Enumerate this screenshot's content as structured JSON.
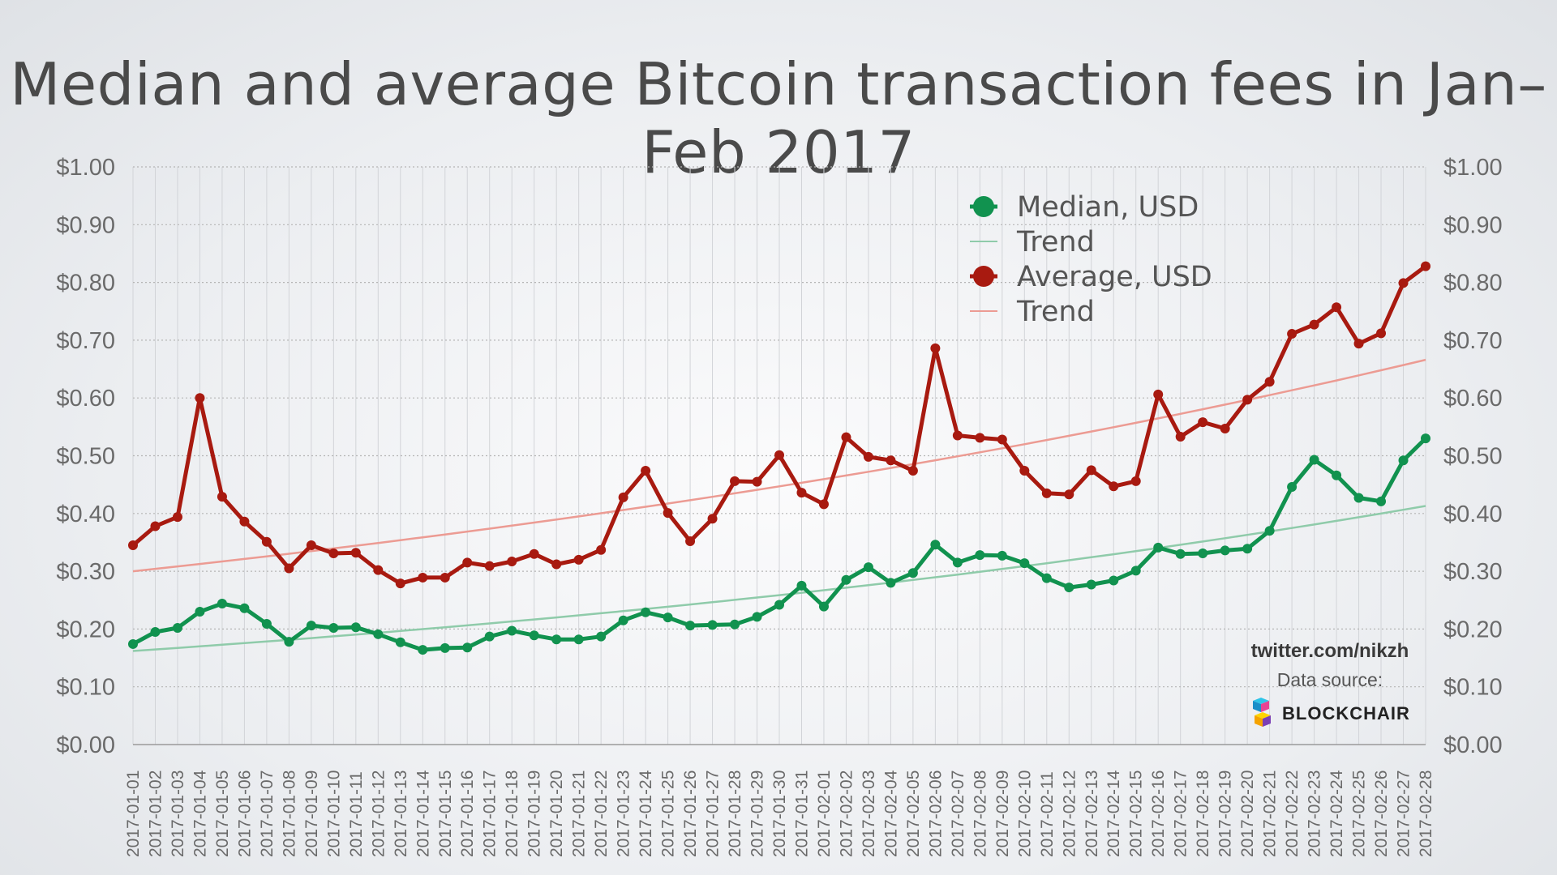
{
  "title": "Median and average Bitcoin transaction fees in Jan–Feb 2017",
  "credit": {
    "twitter": "twitter.com/nikzh",
    "source_label": "Data source:",
    "logo_text": "BLOCKCHAIR"
  },
  "colors": {
    "median": "#11924f",
    "median_trend": "#8fcbaa",
    "average": "#a81a10",
    "average_trend": "#ec9b93",
    "grid": "#b5b5b5",
    "axis_text": "#6a6a6a"
  },
  "chart_data": {
    "type": "line",
    "title": "Median and average Bitcoin transaction fees in Jan–Feb 2017",
    "xlabel": "",
    "ylabel": "",
    "ylim": [
      0,
      1.0
    ],
    "y_ticks": [
      "$0.00",
      "$0.10",
      "$0.20",
      "$0.30",
      "$0.40",
      "$0.50",
      "$0.60",
      "$0.70",
      "$0.80",
      "$0.90",
      "$1.00"
    ],
    "categories": [
      "2017-01-01",
      "2017-01-02",
      "2017-01-03",
      "2017-01-04",
      "2017-01-05",
      "2017-01-06",
      "2017-01-07",
      "2017-01-08",
      "2017-01-09",
      "2017-01-10",
      "2017-01-11",
      "2017-01-12",
      "2017-01-13",
      "2017-01-14",
      "2017-01-15",
      "2017-01-16",
      "2017-01-17",
      "2017-01-18",
      "2017-01-19",
      "2017-01-20",
      "2017-01-21",
      "2017-01-22",
      "2017-01-23",
      "2017-01-24",
      "2017-01-25",
      "2017-01-26",
      "2017-01-27",
      "2017-01-28",
      "2017-01-29",
      "2017-01-30",
      "2017-01-31",
      "2017-02-01",
      "2017-02-02",
      "2017-02-03",
      "2017-02-04",
      "2017-02-05",
      "2017-02-06",
      "2017-02-07",
      "2017-02-08",
      "2017-02-09",
      "2017-02-10",
      "2017-02-11",
      "2017-02-12",
      "2017-02-13",
      "2017-02-14",
      "2017-02-15",
      "2017-02-16",
      "2017-02-17",
      "2017-02-18",
      "2017-02-19",
      "2017-02-20",
      "2017-02-21",
      "2017-02-22",
      "2017-02-23",
      "2017-02-24",
      "2017-02-25",
      "2017-02-26",
      "2017-02-27",
      "2017-02-28"
    ],
    "legend": [
      "Median, USD",
      "Trend",
      "Average, USD",
      "Trend"
    ],
    "legend_position": "top-right",
    "series": [
      {
        "name": "Median, USD",
        "values": [
          0.174,
          0.195,
          0.202,
          0.23,
          0.244,
          0.236,
          0.209,
          0.178,
          0.206,
          0.202,
          0.203,
          0.191,
          0.177,
          0.164,
          0.167,
          0.168,
          0.187,
          0.197,
          0.189,
          0.182,
          0.182,
          0.187,
          0.215,
          0.229,
          0.22,
          0.206,
          0.207,
          0.208,
          0.221,
          0.242,
          0.275,
          0.239,
          0.285,
          0.307,
          0.28,
          0.297,
          0.346,
          0.315,
          0.328,
          0.327,
          0.314,
          0.288,
          0.272,
          0.277,
          0.284,
          0.301,
          0.341,
          0.33,
          0.331,
          0.336,
          0.339,
          0.37,
          0.446,
          0.493,
          0.466,
          0.427,
          0.421,
          0.492,
          0.53
        ]
      },
      {
        "name": "Average, USD",
        "values": [
          0.345,
          0.378,
          0.394,
          0.6,
          0.429,
          0.386,
          0.351,
          0.305,
          0.345,
          0.331,
          0.332,
          0.302,
          0.279,
          0.289,
          0.289,
          0.315,
          0.309,
          0.317,
          0.33,
          0.312,
          0.32,
          0.337,
          0.428,
          0.474,
          0.401,
          0.352,
          0.391,
          0.456,
          0.455,
          0.501,
          0.436,
          0.416,
          0.532,
          0.498,
          0.492,
          0.474,
          0.686,
          0.535,
          0.531,
          0.528,
          0.474,
          0.435,
          0.433,
          0.475,
          0.447,
          0.456,
          0.606,
          0.533,
          0.558,
          0.547,
          0.597,
          0.628,
          0.711,
          0.727,
          0.757,
          0.694,
          0.712,
          0.799,
          0.828
        ]
      }
    ],
    "trends": [
      {
        "name": "Median trend",
        "start": 0.162,
        "end": 0.413,
        "curve": "exponential"
      },
      {
        "name": "Average trend",
        "start": 0.3,
        "end": 0.666,
        "curve": "exponential"
      }
    ]
  }
}
